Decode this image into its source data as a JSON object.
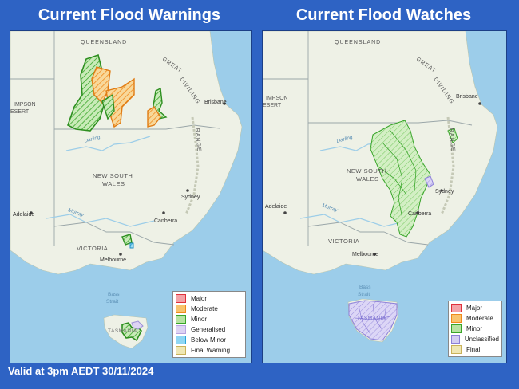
{
  "titles": {
    "warnings": "Current Flood Warnings",
    "watches": "Current Flood Watches"
  },
  "footer": {
    "valid": "Valid at 3pm AEDT 30/11/2024"
  },
  "map_labels": {
    "queensland": "QUEENSLAND",
    "great": "GREAT",
    "dividing": "DIVIDING",
    "range": "RANGE",
    "simpson1": "IMPSON",
    "simpson2": "ESERT",
    "brisbane": "Brisbane",
    "darling": "Darling",
    "nsw1": "NEW SOUTH",
    "nsw2": "WALES",
    "sydney": "Sydney",
    "adelaide": "Adelaide",
    "murray": "Murray",
    "canberra": "Canberra",
    "victoria": "VICTORIA",
    "melbourne": "Melbourne",
    "bass1": "Bass",
    "bass2": "Strait",
    "tasmania": "TASMANIA"
  },
  "legend_warnings": [
    {
      "label": "Major",
      "color": "#e0313b",
      "fill": "#f3a3a8"
    },
    {
      "label": "Moderate",
      "color": "#f08a1c",
      "fill": "#f8c46e"
    },
    {
      "label": "Minor",
      "color": "#39a52a",
      "fill": "#b7e3a2"
    },
    {
      "label": "Generalised",
      "color": "#b7a3e0",
      "fill": "#ddd3f3"
    },
    {
      "label": "Below Minor",
      "color": "#29a5d9",
      "fill": "#8fd6f3"
    },
    {
      "label": "Final Warning",
      "color": "#c9b25a",
      "fill": "#efe7b4"
    }
  ],
  "legend_watches": [
    {
      "label": "Major",
      "color": "#e0313b",
      "fill": "#f3a3a8"
    },
    {
      "label": "Moderate",
      "color": "#f08a1c",
      "fill": "#f8c46e"
    },
    {
      "label": "Minor",
      "color": "#39a52a",
      "fill": "#b7e3a2"
    },
    {
      "label": "Unclassified",
      "color": "#8c7fd8",
      "fill": "#d3cdf3"
    },
    {
      "label": "Final",
      "color": "#c9b25a",
      "fill": "#efe7b4"
    }
  ]
}
